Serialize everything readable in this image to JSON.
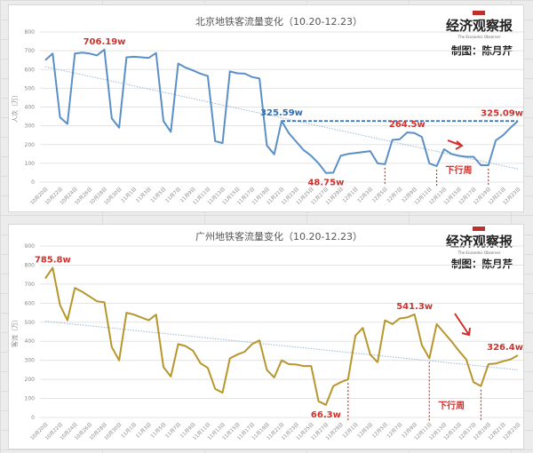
{
  "publisher": {
    "name": "经济观察报",
    "english_name": "The Economic Observer",
    "credit": "制图：陈月芹"
  },
  "chart_data": [
    {
      "type": "line",
      "title": "北京地铁客流量变化（10.20-12.23）",
      "xlabel": "",
      "ylabel": "人次（万）",
      "ylim": [
        0,
        800
      ],
      "yticks": [
        0,
        100,
        200,
        300,
        400,
        500,
        600,
        700,
        800
      ],
      "grid": true,
      "line_color": "#5b8fc7",
      "trendline": {
        "start": 615,
        "end": 70,
        "style": "dotted",
        "color": "#9ab8d8"
      },
      "x_tick_labels": [
        "10月20日",
        "10月22日",
        "10月24日",
        "10月26日",
        "10月28日",
        "10月30日",
        "11月1日",
        "11月3日",
        "11月5日",
        "11月7日",
        "11月9日",
        "11月11日",
        "11月13日",
        "11月15日",
        "11月17日",
        "11月19日",
        "11月21日",
        "11月23日",
        "11月25日",
        "11月27日",
        "11月29日",
        "12月1日",
        "12月3日",
        "12月5日",
        "12月7日",
        "12月9日",
        "12月11日",
        "12月13日",
        "12月15日",
        "12月17日",
        "12月19日",
        "12月21日",
        "12月23日"
      ],
      "x": [
        "10/20",
        "10/21",
        "10/22",
        "10/23",
        "10/24",
        "10/25",
        "10/26",
        "10/27",
        "10/28",
        "10/29",
        "10/30",
        "10/31",
        "11/1",
        "11/2",
        "11/3",
        "11/4",
        "11/5",
        "11/6",
        "11/7",
        "11/8",
        "11/9",
        "11/10",
        "11/11",
        "11/12",
        "11/13",
        "11/14",
        "11/15",
        "11/16",
        "11/17",
        "11/18",
        "11/19",
        "11/20",
        "11/21",
        "11/22",
        "11/23",
        "11/24",
        "11/25",
        "11/26",
        "11/27",
        "11/28",
        "11/29",
        "11/30",
        "12/1",
        "12/2",
        "12/3",
        "12/4",
        "12/5",
        "12/6",
        "12/7",
        "12/8",
        "12/9",
        "12/10",
        "12/11",
        "12/12",
        "12/13",
        "12/14",
        "12/15",
        "12/16",
        "12/17",
        "12/18",
        "12/19",
        "12/20",
        "12/21",
        "12/22",
        "12/23"
      ],
      "series": [
        {
          "name": "北京地铁客流量",
          "values": [
            650,
            685,
            345,
            310,
            685,
            690,
            685,
            675,
            706.19,
            340,
            290,
            665,
            668,
            665,
            662,
            688,
            325,
            268,
            632,
            610,
            595,
            578,
            565,
            218,
            208,
            590,
            580,
            578,
            560,
            552,
            195,
            148,
            325.59,
            260,
            215,
            170,
            140,
            100,
            48.75,
            50,
            140,
            150,
            155,
            160,
            165,
            100,
            95,
            225,
            228,
            264.5,
            262,
            240,
            100,
            85,
            175,
            150,
            140,
            135,
            135,
            90,
            90,
            222,
            250,
            290,
            325.09
          ]
        }
      ],
      "annotations": [
        {
          "text": "706.19w",
          "x_index": 8,
          "color": "#d0312d"
        },
        {
          "text": "325.59w",
          "x_index": 32,
          "color": "#2f6fb8"
        },
        {
          "text": "264.5w",
          "x_index": 49,
          "color": "#d0312d"
        },
        {
          "text": "48.75w",
          "x_index": 38,
          "color": "#d0312d"
        },
        {
          "text": "325.09w",
          "x_index": 64,
          "color": "#d0312d"
        },
        {
          "text": "下行周",
          "x_index": 56,
          "color": "#d0312d"
        }
      ],
      "reference_line": {
        "value": 325.59,
        "from_index": 32,
        "to_index": 64,
        "style": "dashed",
        "color": "#2f6fb8"
      },
      "marker_lines": [
        46,
        53,
        60
      ]
    },
    {
      "type": "line",
      "title": "广州地铁客流量变化（10.20-12.23）",
      "xlabel": "",
      "ylabel": "客流（万）",
      "ylim": [
        0,
        900
      ],
      "yticks": [
        0,
        100,
        200,
        300,
        400,
        500,
        600,
        700,
        800,
        900
      ],
      "grid": true,
      "line_color": "#b8962e",
      "trendline": {
        "start": 505,
        "end": 250,
        "style": "dotted",
        "color": "#9ab8d8"
      },
      "x_tick_labels": [
        "10月20日",
        "10月22日",
        "10月24日",
        "10月26日",
        "10月28日",
        "10月30日",
        "11月1日",
        "11月3日",
        "11月5日",
        "11月7日",
        "11月9日",
        "11月11日",
        "11月13日",
        "11月15日",
        "11月17日",
        "11月19日",
        "11月21日",
        "11月23日",
        "11月25日",
        "11月27日",
        "11月29日",
        "12月1日",
        "12月3日",
        "12月5日",
        "12月7日",
        "12月9日",
        "12月11日",
        "12月13日",
        "12月15日",
        "12月17日",
        "12月19日",
        "12月21日",
        "12月23日"
      ],
      "x": [
        "10/20",
        "10/21",
        "10/22",
        "10/23",
        "10/24",
        "10/25",
        "10/26",
        "10/27",
        "10/28",
        "10/29",
        "10/30",
        "10/31",
        "11/1",
        "11/2",
        "11/3",
        "11/4",
        "11/5",
        "11/6",
        "11/7",
        "11/8",
        "11/9",
        "11/10",
        "11/11",
        "11/12",
        "11/13",
        "11/14",
        "11/15",
        "11/16",
        "11/17",
        "11/18",
        "11/19",
        "11/20",
        "11/21",
        "11/22",
        "11/23",
        "11/24",
        "11/25",
        "11/26",
        "11/27",
        "11/28",
        "11/29",
        "11/30",
        "12/1",
        "12/2",
        "12/3",
        "12/4",
        "12/5",
        "12/6",
        "12/7",
        "12/8",
        "12/9",
        "12/10",
        "12/11",
        "12/12",
        "12/13",
        "12/14",
        "12/15",
        "12/16",
        "12/17",
        "12/18",
        "12/19",
        "12/20",
        "12/21",
        "12/22",
        "12/23"
      ],
      "series": [
        {
          "name": "广州地铁客流量",
          "values": [
            730,
            785.8,
            590,
            510,
            680,
            660,
            635,
            610,
            605,
            370,
            300,
            550,
            540,
            525,
            510,
            540,
            265,
            215,
            385,
            375,
            350,
            285,
            260,
            150,
            130,
            310,
            330,
            345,
            385,
            405,
            250,
            210,
            300,
            280,
            278,
            270,
            270,
            85,
            66.3,
            165,
            185,
            200,
            430,
            470,
            330,
            290,
            510,
            490,
            520,
            525,
            541.3,
            380,
            310,
            490,
            445,
            400,
            350,
            305,
            185,
            165,
            280,
            283,
            295,
            305,
            326.4
          ]
        }
      ],
      "annotations": [
        {
          "text": "785.8w",
          "x_index": 1,
          "color": "#d0312d"
        },
        {
          "text": "66.3w",
          "x_index": 38,
          "color": "#d0312d"
        },
        {
          "text": "541.3w",
          "x_index": 50,
          "color": "#d0312d"
        },
        {
          "text": "326.4w",
          "x_index": 64,
          "color": "#d0312d"
        },
        {
          "text": "下行周",
          "x_index": 55,
          "color": "#d0312d"
        }
      ],
      "marker_lines": [
        41,
        52,
        59
      ]
    }
  ]
}
